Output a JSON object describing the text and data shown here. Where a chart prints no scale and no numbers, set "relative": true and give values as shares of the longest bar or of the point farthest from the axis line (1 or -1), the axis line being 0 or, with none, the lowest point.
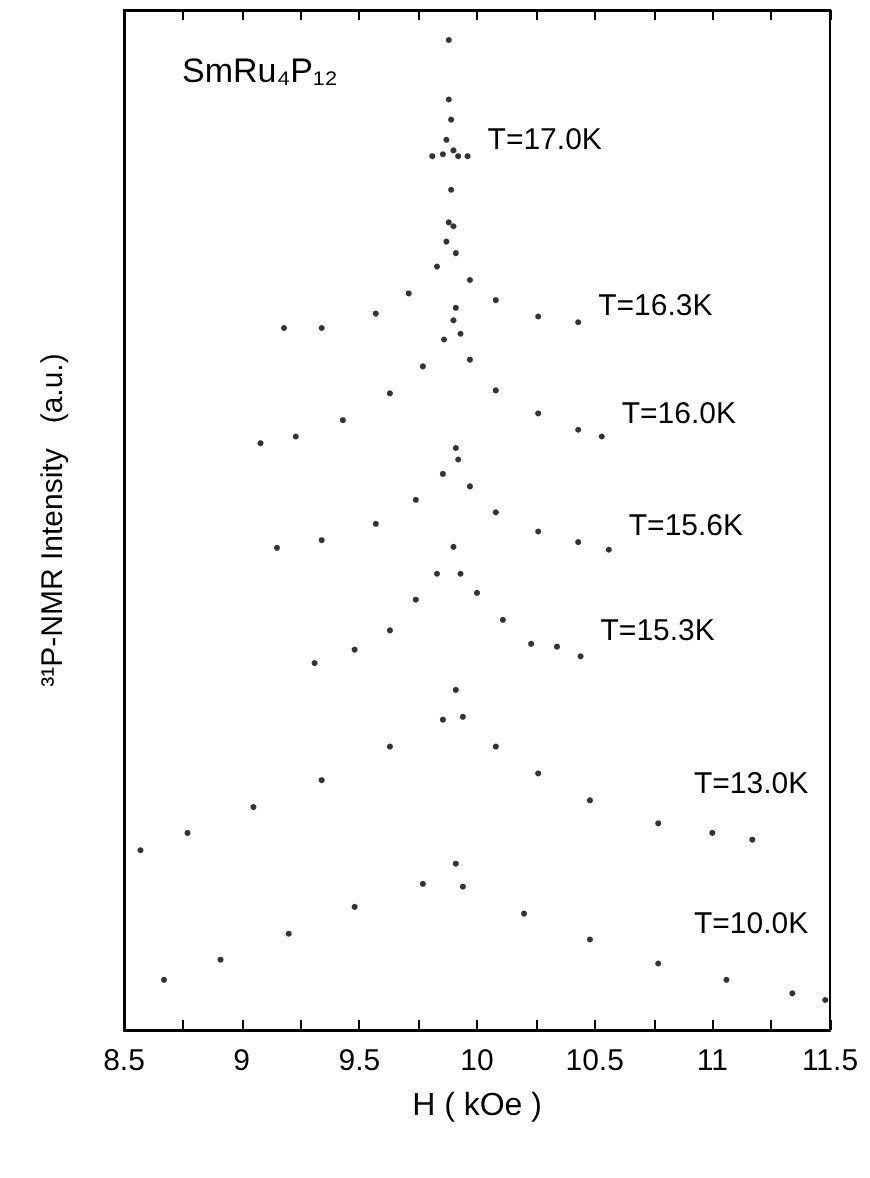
{
  "chart_data": {
    "type": "scatter",
    "title": "SmRu₄P₁₂",
    "xlabel": "H ( kOe )",
    "ylabel": "³¹P-NMR Intensity   (a.u.)",
    "relative": true,
    "grid": false,
    "legend": false,
    "marker": "circle",
    "xlim": [
      8.5,
      11.5
    ],
    "xticks": [
      8.5,
      {
        "value": 8.75,
        "label": null
      },
      9,
      {
        "value": 9.25,
        "label": null
      },
      9.5,
      {
        "value": 9.75,
        "label": null
      },
      10,
      {
        "value": 10.25,
        "label": null
      },
      10.5,
      {
        "value": 10.75,
        "label": null
      },
      11,
      {
        "value": 11.25,
        "label": null
      },
      11.5
    ],
    "series": [
      {
        "name": "T=17.0K",
        "color": "#000000",
        "x": [
          9.81,
          9.855,
          9.87,
          9.88,
          9.88,
          9.89,
          9.9,
          9.92,
          9.96
        ],
        "values": [
          0.879,
          0.881,
          0.896,
          0.938,
          1,
          0.917,
          0.885,
          0.879,
          0.879
        ]
      },
      {
        "name": "T=16.3K",
        "color": "#000000",
        "x": [
          9.18,
          9.34,
          9.57,
          9.71,
          9.83,
          9.87,
          9.88,
          9.89,
          9.9,
          9.91,
          9.97,
          10.08,
          10.26,
          10.43
        ],
        "values": [
          0.7,
          0.7,
          0.715,
          0.736,
          0.764,
          0.79,
          0.81,
          0.844,
          0.806,
          0.778,
          0.75,
          0.729,
          0.712,
          0.706
        ]
      },
      {
        "name": "T=16.0K",
        "color": "#000000",
        "x": [
          9.08,
          9.23,
          9.43,
          9.63,
          9.77,
          9.86,
          9.9,
          9.91,
          9.93,
          9.97,
          10.08,
          10.26,
          10.43,
          10.53
        ],
        "values": [
          0.58,
          0.587,
          0.604,
          0.632,
          0.66,
          0.688,
          0.708,
          0.721,
          0.694,
          0.667,
          0.635,
          0.611,
          0.594,
          0.587
        ]
      },
      {
        "name": "T=15.6K",
        "color": "#000000",
        "x": [
          9.15,
          9.34,
          9.57,
          9.74,
          9.855,
          9.91,
          9.92,
          9.97,
          10.08,
          10.26,
          10.43,
          10.56
        ],
        "values": [
          0.471,
          0.479,
          0.496,
          0.521,
          0.548,
          0.575,
          0.563,
          0.535,
          0.508,
          0.488,
          0.477,
          0.469
        ]
      },
      {
        "name": "T=15.3K",
        "color": "#000000",
        "x": [
          9.31,
          9.48,
          9.63,
          9.74,
          9.83,
          9.9,
          9.93,
          10.0,
          10.11,
          10.23,
          10.34,
          10.44
        ],
        "values": [
          0.351,
          0.365,
          0.385,
          0.417,
          0.444,
          0.472,
          0.444,
          0.424,
          0.396,
          0.371,
          0.368,
          0.358
        ]
      },
      {
        "name": "T=13.0K",
        "color": "#000000",
        "x": [
          8.57,
          8.77,
          9.05,
          9.34,
          9.63,
          9.855,
          9.91,
          9.94,
          10.08,
          10.26,
          10.48,
          10.77,
          11.0,
          11.17
        ],
        "values": [
          0.156,
          0.174,
          0.201,
          0.229,
          0.264,
          0.292,
          0.323,
          0.295,
          0.264,
          0.236,
          0.208,
          0.184,
          0.174,
          0.167
        ]
      },
      {
        "name": "T=10.0K",
        "color": "#000000",
        "x": [
          8.67,
          8.91,
          9.2,
          9.48,
          9.77,
          9.91,
          9.94,
          10.2,
          10.48,
          10.77,
          11.06,
          11.34,
          11.48
        ],
        "values": [
          0.021,
          0.042,
          0.069,
          0.097,
          0.121,
          0.142,
          0.118,
          0.09,
          0.063,
          0.038,
          0.021,
          0.007,
          0
        ]
      }
    ]
  }
}
